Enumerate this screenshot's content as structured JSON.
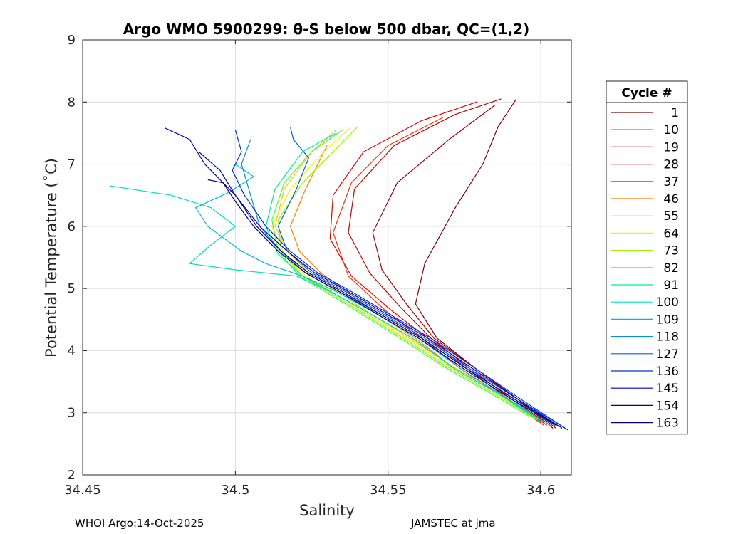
{
  "chart_data": {
    "type": "line",
    "title": "Argo WMO 5900299: θ-S below 500 dbar,  QC=(1,2)",
    "xlabel": "Salinity",
    "ylabel": "Potential Temperature (˚C)",
    "xlim": [
      34.45,
      34.61
    ],
    "ylim": [
      2,
      9
    ],
    "xticks": [
      34.45,
      34.5,
      34.55,
      34.6
    ],
    "xtick_labels": [
      "34.45",
      "34.5",
      "34.55",
      "34.6"
    ],
    "yticks": [
      2,
      3,
      4,
      5,
      6,
      7,
      8,
      9
    ],
    "ytick_labels": [
      "2",
      "3",
      "4",
      "5",
      "6",
      "7",
      "8",
      "9"
    ],
    "grid": true,
    "legend_title": "Cycle #",
    "legend_position": "right-outside",
    "series": [
      {
        "name": "1",
        "color": "#800000",
        "x": [
          34.604,
          34.593,
          34.579,
          34.566,
          34.559,
          34.562,
          34.572,
          34.581,
          34.586,
          34.592
        ],
        "y": [
          2.75,
          3.2,
          3.7,
          4.2,
          4.75,
          5.4,
          6.3,
          7.0,
          7.6,
          8.05
        ]
      },
      {
        "name": "10",
        "color": "#a00000",
        "x": [
          34.605,
          34.593,
          34.579,
          34.565,
          34.556,
          34.548,
          34.545,
          34.553,
          34.57,
          34.585
        ],
        "y": [
          2.75,
          3.2,
          3.7,
          4.2,
          4.75,
          5.3,
          5.9,
          6.7,
          7.4,
          7.95
        ]
      },
      {
        "name": "19",
        "color": "#c40000",
        "x": [
          34.603,
          34.591,
          34.577,
          34.564,
          34.554,
          34.544,
          34.537,
          34.539,
          34.552,
          34.572,
          34.587
        ],
        "y": [
          2.8,
          3.2,
          3.7,
          4.2,
          4.7,
          5.25,
          5.9,
          6.6,
          7.3,
          7.8,
          8.05
        ]
      },
      {
        "name": "28",
        "color": "#e40000",
        "x": [
          34.602,
          34.59,
          34.576,
          34.563,
          34.551,
          34.538,
          34.531,
          34.532,
          34.542,
          34.561,
          34.579
        ],
        "y": [
          2.8,
          3.2,
          3.7,
          4.2,
          4.65,
          5.2,
          5.8,
          6.5,
          7.2,
          7.7,
          8.0
        ]
      },
      {
        "name": "37",
        "color": "#ff2a00",
        "x": [
          34.601,
          34.589,
          34.574,
          34.561,
          34.549,
          34.537,
          34.532,
          34.538,
          34.55,
          34.568
        ],
        "y": [
          2.8,
          3.2,
          3.7,
          4.2,
          4.65,
          5.2,
          5.9,
          6.7,
          7.3,
          7.75
        ]
      },
      {
        "name": "46",
        "color": "#ff7a00",
        "x": [
          34.6,
          34.588,
          34.572,
          34.559,
          34.546,
          34.538,
          34.528,
          34.521,
          34.518,
          34.523,
          34.53
        ],
        "y": [
          2.85,
          3.25,
          3.7,
          4.2,
          4.6,
          4.9,
          5.25,
          5.6,
          6.0,
          6.6,
          7.3
        ]
      },
      {
        "name": "55",
        "color": "#ffc400",
        "x": [
          34.599,
          34.587,
          34.571,
          34.557,
          34.544,
          34.535,
          34.525,
          34.518,
          34.513,
          34.516,
          34.525,
          34.533
        ],
        "y": [
          2.9,
          3.3,
          3.75,
          4.2,
          4.6,
          4.9,
          5.2,
          5.55,
          6.0,
          6.6,
          7.2,
          7.55
        ]
      },
      {
        "name": "64",
        "color": "#f2f200",
        "x": [
          34.598,
          34.586,
          34.57,
          34.556,
          34.543,
          34.533,
          34.523,
          34.516,
          34.512,
          34.518,
          34.529,
          34.538
        ],
        "y": [
          2.9,
          3.3,
          3.75,
          4.2,
          4.6,
          4.9,
          5.2,
          5.55,
          6.0,
          6.6,
          7.2,
          7.6
        ]
      },
      {
        "name": "73",
        "color": "#9ef200",
        "x": [
          34.597,
          34.585,
          34.569,
          34.555,
          34.542,
          34.532,
          34.522,
          34.515,
          34.514,
          34.522,
          34.533,
          34.54
        ],
        "y": [
          2.95,
          3.3,
          3.75,
          4.2,
          4.6,
          4.9,
          5.2,
          5.6,
          6.1,
          6.7,
          7.25,
          7.6
        ]
      },
      {
        "name": "82",
        "color": "#40ff40",
        "x": [
          34.596,
          34.584,
          34.568,
          34.554,
          34.541,
          34.531,
          34.521,
          34.514,
          34.512,
          34.516,
          34.525,
          34.535
        ],
        "y": [
          2.95,
          3.3,
          3.75,
          4.2,
          4.6,
          4.9,
          5.2,
          5.6,
          6.1,
          6.7,
          7.2,
          7.55
        ]
      },
      {
        "name": "91",
        "color": "#00f080",
        "x": [
          34.6,
          34.588,
          34.572,
          34.558,
          34.544,
          34.533,
          34.522,
          34.514,
          34.51,
          34.513,
          34.522,
          34.533
        ],
        "y": [
          2.85,
          3.25,
          3.7,
          4.2,
          4.6,
          4.9,
          5.2,
          5.55,
          6.0,
          6.6,
          7.2,
          7.5
        ]
      },
      {
        "name": "100",
        "color": "#00e0c0",
        "x": [
          34.601,
          34.588,
          34.572,
          34.558,
          34.544,
          34.531,
          34.52,
          34.5,
          34.485,
          34.492,
          34.5,
          34.492,
          34.479,
          34.459
        ],
        "y": [
          2.85,
          3.25,
          3.7,
          4.2,
          4.6,
          4.95,
          5.2,
          5.3,
          5.4,
          5.7,
          6.0,
          6.3,
          6.5,
          6.65
        ]
      },
      {
        "name": "109",
        "color": "#00b8e0",
        "x": [
          34.603,
          34.59,
          34.574,
          34.56,
          34.546,
          34.533,
          34.522,
          34.51,
          34.502,
          34.491,
          34.487,
          34.498,
          34.506,
          34.5
        ],
        "y": [
          2.8,
          3.2,
          3.7,
          4.2,
          4.6,
          4.95,
          5.2,
          5.4,
          5.6,
          6.0,
          6.3,
          6.55,
          6.8,
          7.0
        ]
      },
      {
        "name": "118",
        "color": "#0090d8",
        "x": [
          34.605,
          34.592,
          34.576,
          34.561,
          34.547,
          34.534,
          34.523,
          34.515,
          34.508,
          34.505,
          34.502,
          34.505
        ],
        "y": [
          2.78,
          3.2,
          3.7,
          4.2,
          4.6,
          4.95,
          5.25,
          5.6,
          6.0,
          6.5,
          7.0,
          7.4
        ]
      },
      {
        "name": "127",
        "color": "#0060e0",
        "x": [
          34.608,
          34.593,
          34.577,
          34.562,
          34.548,
          34.536,
          34.525,
          34.517,
          34.514,
          34.52,
          34.524,
          34.519,
          34.518
        ],
        "y": [
          2.75,
          3.2,
          3.7,
          4.2,
          4.6,
          4.95,
          5.25,
          5.6,
          6.0,
          6.6,
          7.1,
          7.4,
          7.6
        ]
      },
      {
        "name": "136",
        "color": "#0030d8",
        "x": [
          34.609,
          34.594,
          34.579,
          34.564,
          34.55,
          34.538,
          34.527,
          34.518,
          34.51,
          34.503,
          34.499,
          34.502,
          34.5
        ],
        "y": [
          2.72,
          3.2,
          3.7,
          4.2,
          4.6,
          4.95,
          5.25,
          5.6,
          6.0,
          6.5,
          6.9,
          7.2,
          7.55
        ]
      },
      {
        "name": "145",
        "color": "#0000b8",
        "x": [
          34.607,
          34.593,
          34.578,
          34.563,
          34.549,
          34.537,
          34.526,
          34.517,
          34.508,
          34.5,
          34.49,
          34.485,
          34.477
        ],
        "y": [
          2.75,
          3.2,
          3.7,
          4.2,
          4.6,
          4.95,
          5.25,
          5.6,
          6.0,
          6.5,
          7.0,
          7.4,
          7.58
        ]
      },
      {
        "name": "154",
        "color": "#000090",
        "x": [
          34.606,
          34.592,
          34.576,
          34.561,
          34.547,
          34.535,
          34.524,
          34.515,
          34.507,
          34.5,
          34.495,
          34.488
        ],
        "y": [
          2.78,
          3.2,
          3.7,
          4.2,
          4.6,
          4.95,
          5.25,
          5.6,
          6.0,
          6.5,
          6.9,
          7.2
        ]
      },
      {
        "name": "163",
        "color": "#000070",
        "x": [
          34.605,
          34.591,
          34.575,
          34.56,
          34.546,
          34.534,
          34.523,
          34.514,
          34.506,
          34.5,
          34.496,
          34.491
        ],
        "y": [
          2.8,
          3.2,
          3.7,
          4.2,
          4.6,
          4.95,
          5.25,
          5.6,
          6.0,
          6.4,
          6.7,
          6.75
        ]
      }
    ]
  },
  "footer": {
    "left": "WHOI Argo:14-Oct-2025",
    "right": "JAMSTEC at jma"
  }
}
